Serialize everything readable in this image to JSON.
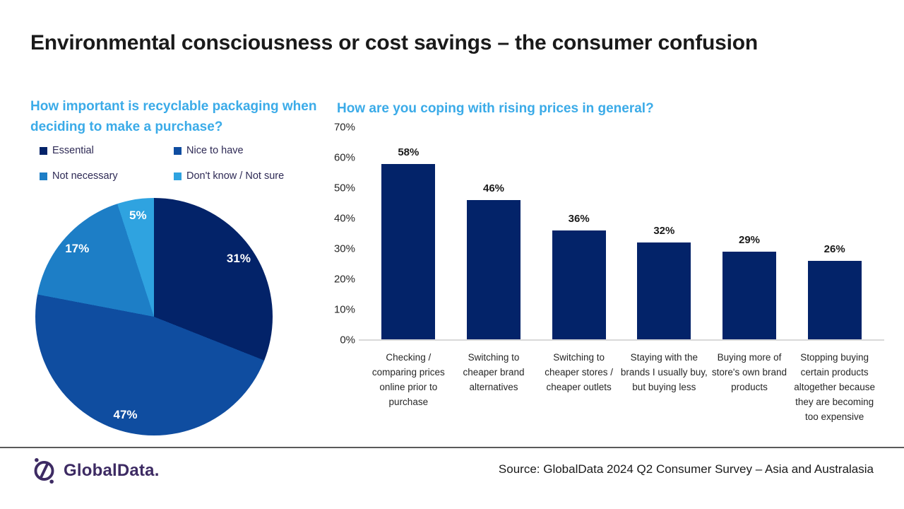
{
  "title": "Environmental consciousness or cost savings – the consumer confusion",
  "colors": {
    "navy": "#032369",
    "mid_blue": "#0f4da0",
    "blue": "#1d7ec6",
    "light_blue": "#2fa3e0",
    "heading_cyan": "#3babe8",
    "legend_text": "#2e2a55",
    "logo_purple": "#3d2b63",
    "axis_line": "#d9d9d9"
  },
  "chart_data": [
    {
      "type": "pie",
      "title": "How important is recyclable packaging when deciding to make a purchase?",
      "labels": [
        "Essential",
        "Nice to have",
        "Not necessary",
        "Don't know / Not sure"
      ],
      "values": [
        31,
        47,
        17,
        5
      ],
      "value_labels": [
        "31%",
        "47%",
        "17%",
        "5%"
      ],
      "colors": [
        "#032369",
        "#0f4da0",
        "#1d7ec6",
        "#2fa3e0"
      ],
      "start_angle_deg": 0,
      "direction": "clockwise",
      "legend_position": "top",
      "legend_columns": 2
    },
    {
      "type": "bar",
      "title": "How are you coping with rising prices in general?",
      "categories": [
        "Checking / comparing prices online prior to purchase",
        "Switching to cheaper brand alternatives",
        "Switching to cheaper stores / cheaper outlets",
        "Staying with the brands I usually buy, but buying less",
        "Buying more of store's own brand products",
        "Stopping buying certain products altogether because they are becoming too expensive"
      ],
      "values": [
        58,
        46,
        36,
        32,
        29,
        26
      ],
      "value_labels": [
        "58%",
        "46%",
        "36%",
        "32%",
        "29%",
        "26%"
      ],
      "bar_color": "#032369",
      "ylim": [
        0,
        70
      ],
      "ytick_step": 10,
      "ytick_labels": [
        "0%",
        "10%",
        "20%",
        "30%",
        "40%",
        "50%",
        "60%",
        "70%"
      ],
      "grid": false
    }
  ],
  "footer": {
    "logo_text": "GlobalData.",
    "source": "Source: GlobalData 2024 Q2 Consumer Survey – Asia and Australasia"
  }
}
